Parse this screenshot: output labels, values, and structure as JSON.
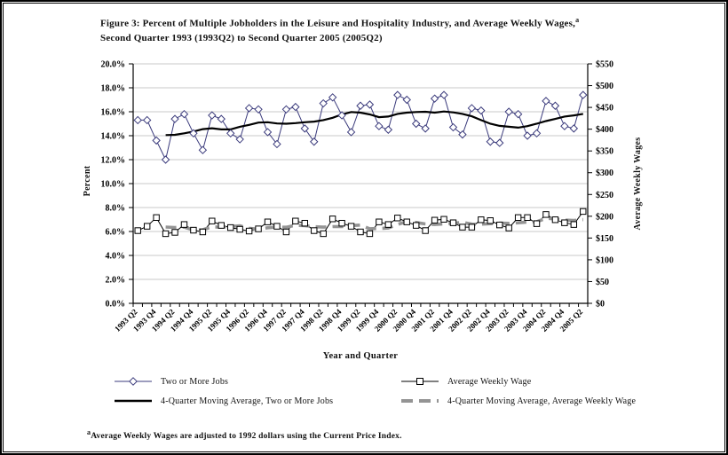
{
  "figure": {
    "title_line1": "Figure 3: Percent of Multiple Jobholders in the Leisure and Hospitality Industry, and Average Weekly Wages,",
    "title_sup": "a",
    "title_line2": "Second Quarter 1993 (1993Q2) to Second Quarter 2005 (2005Q2)"
  },
  "chart_data": {
    "type": "line",
    "xlabel": "Year and Quarter",
    "categories": [
      "1993 Q2",
      "1993 Q3",
      "1993 Q4",
      "1994 Q1",
      "1994 Q2",
      "1994 Q3",
      "1994 Q4",
      "1995 Q1",
      "1995 Q2",
      "1995 Q3",
      "1995 Q4",
      "1996 Q1",
      "1996 Q2",
      "1996 Q3",
      "1996 Q4",
      "1997 Q1",
      "1997 Q2",
      "1997 Q3",
      "1997 Q4",
      "1998 Q1",
      "1998 Q2",
      "1998 Q3",
      "1998 Q4",
      "1999 Q1",
      "1999 Q2",
      "1999 Q3",
      "1999 Q4",
      "2000 Q1",
      "2000 Q2",
      "2000 Q3",
      "2000 Q4",
      "2001 Q1",
      "2001 Q2",
      "2001 Q3",
      "2001 Q4",
      "2002 Q1",
      "2002 Q2",
      "2002 Q3",
      "2002 Q4",
      "2003 Q1",
      "2003 Q2",
      "2003 Q3",
      "2003 Q4",
      "2004 Q1",
      "2004 Q2",
      "2004 Q3",
      "2004 Q4",
      "2005 Q1",
      "2005 Q2"
    ],
    "x_tick_label_every": 2,
    "grid": true,
    "legend_position": "bottom",
    "axes": {
      "left": {
        "label": "Percent",
        "min": 0,
        "max": 20,
        "step": 2,
        "tick_format": "percent1"
      },
      "right": {
        "label": "Average Weekly Wages",
        "min": 0,
        "max": 550,
        "step": 50,
        "tick_format": "dollar"
      }
    },
    "series": [
      {
        "name": "Two or More Jobs",
        "axis": "left",
        "marker": "diamond",
        "color": "#3b3b7c",
        "width": 1,
        "values": [
          15.3,
          15.3,
          13.6,
          12.0,
          15.4,
          15.8,
          14.2,
          12.8,
          15.7,
          15.4,
          14.2,
          13.7,
          16.3,
          16.2,
          14.3,
          13.3,
          16.2,
          16.4,
          14.6,
          13.5,
          16.7,
          17.2,
          15.7,
          14.3,
          16.5,
          16.6,
          14.8,
          14.5,
          17.4,
          17.0,
          15.0,
          14.6,
          17.1,
          17.4,
          14.7,
          14.1,
          16.3,
          16.1,
          13.5,
          13.4,
          16.0,
          15.8,
          14.0,
          14.2,
          16.9,
          16.5,
          14.8,
          14.6,
          17.4
        ]
      },
      {
        "name": "Average Weekly Wage",
        "axis": "right",
        "marker": "square",
        "color": "#000000",
        "width": 1,
        "values": [
          167,
          177,
          197,
          160,
          163,
          181,
          168,
          164,
          189,
          179,
          174,
          170,
          166,
          171,
          187,
          177,
          164,
          189,
          184,
          167,
          160,
          194,
          184,
          177,
          164,
          160,
          187,
          181,
          196,
          187,
          179,
          167,
          191,
          193,
          185,
          175,
          175,
          192,
          190,
          180,
          173,
          197,
          197,
          183,
          204,
          192,
          185,
          181,
          211
        ]
      },
      {
        "name": "4-Quarter Moving Average, Two or More Jobs",
        "axis": "left",
        "derived_from": 0,
        "moving_average_window": 4,
        "color": "#000000",
        "width": 2.2
      },
      {
        "name": "4-Quarter Moving Average, Average Weekly Wage",
        "axis": "right",
        "derived_from": 1,
        "moving_average_window": 4,
        "color": "#949494",
        "width": 3.6,
        "dash": "12 7"
      }
    ],
    "colors": {
      "grid": "#c9c9c9",
      "axis": "#000000",
      "marker_fill": "#ffffff"
    }
  },
  "footnote": {
    "sup": "a",
    "text": "Average Weekly Wages are adjusted to 1992 dollars using the Current Price Index."
  }
}
